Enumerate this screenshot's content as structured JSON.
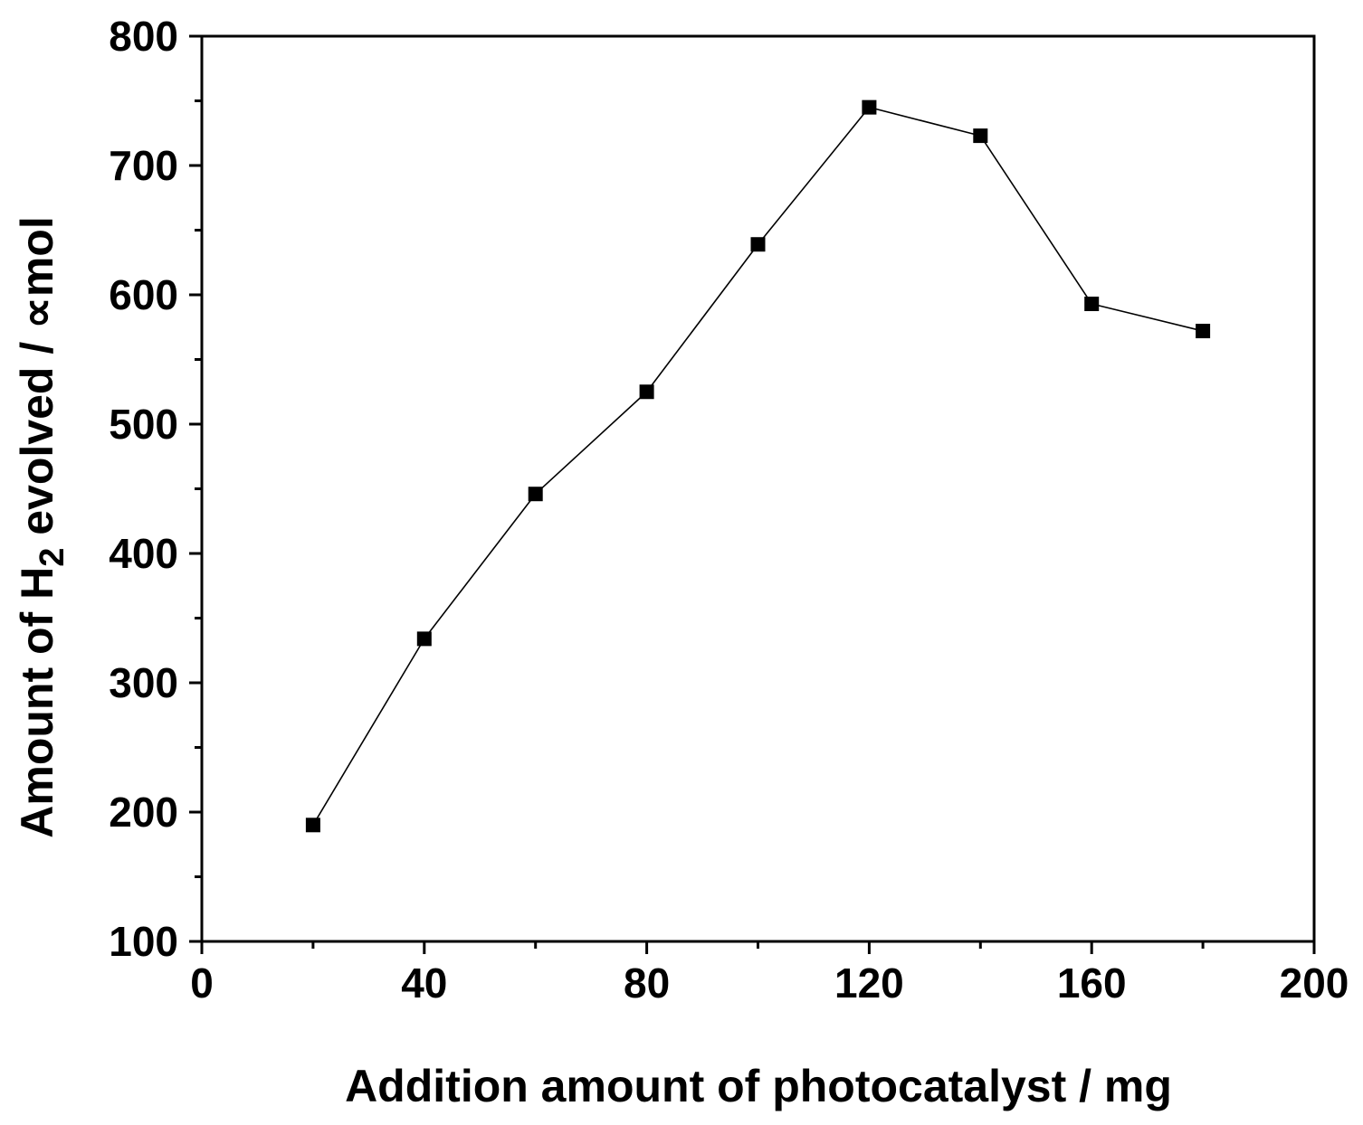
{
  "chart_data": {
    "type": "line",
    "xlabel": "Addition amount of photocatalyst / mg",
    "ylabel_parts": {
      "prefix": "Amount of H",
      "subscript": "2",
      "suffix": " evolved / ",
      "unit_symbol": "∝",
      "unit": "mol"
    },
    "xlim": [
      0,
      200
    ],
    "ylim": [
      100,
      800
    ],
    "x_ticks": [
      0,
      40,
      80,
      120,
      160,
      200
    ],
    "x_tick_labels": [
      "0",
      "40",
      "80",
      "120",
      "160",
      "200"
    ],
    "x_minor_ticks": [
      20,
      60,
      100,
      140,
      180
    ],
    "y_ticks": [
      100,
      200,
      300,
      400,
      500,
      600,
      700,
      800
    ],
    "y_tick_labels": [
      "100",
      "200",
      "300",
      "400",
      "500",
      "600",
      "700",
      "800"
    ],
    "y_minor_ticks": [
      150,
      250,
      350,
      450,
      550,
      650,
      750
    ],
    "marker": "square",
    "color": "#000000",
    "x": [
      20,
      40,
      60,
      80,
      100,
      120,
      140,
      160,
      180
    ],
    "y": [
      190,
      334,
      446,
      525,
      639,
      745,
      723,
      593,
      572
    ]
  }
}
